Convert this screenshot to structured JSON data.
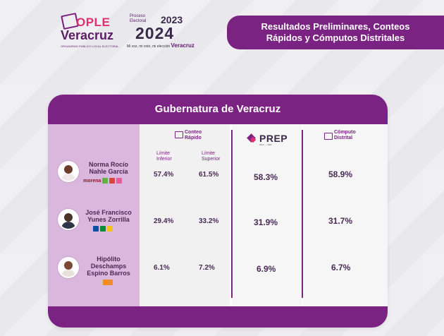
{
  "header": {
    "ople": {
      "word": "OPLE",
      "name": "Veracruz",
      "sub": "ORGANISMO PÚBLICO LOCAL ELECTORAL"
    },
    "proceso": {
      "line1": "Proceso",
      "line2": "Electoral",
      "year_from": "2023",
      "year_to": "2024",
      "tagline": "Mi voz, mi voto, mi elección",
      "tagline_place": "Veracruz"
    },
    "banner": {
      "line1": "Resultados Preliminares, Conteos",
      "line2": "Rápidos y Cómputos Distritales"
    }
  },
  "card": {
    "title": "Gubernatura de Veracruz",
    "columns": {
      "conteo": {
        "line1": "Conteo",
        "line2": "Rápido"
      },
      "prep": {
        "word": "PREP",
        "sub": "2024 — VER"
      },
      "computo": {
        "line1": "Cómputo",
        "line2": "Distrital"
      }
    },
    "limits": {
      "lower": [
        "Límite",
        "Inferior"
      ],
      "upper": [
        "Límite",
        "Superior"
      ]
    },
    "candidates": [
      {
        "name": [
          "Norma Rocío",
          "Nahle García"
        ],
        "party": "morena",
        "lower": "57.4%",
        "upper": "61.5%",
        "prep": "58.3%",
        "computo": "58.9%"
      },
      {
        "name": [
          "José Francisco",
          "Yunes Zorrilla"
        ],
        "party": "",
        "lower": "29.4%",
        "upper": "33.2%",
        "prep": "31.9%",
        "computo": "31.7%"
      },
      {
        "name": [
          "Hipólito",
          "Deschamps",
          "Espino Barros"
        ],
        "party": "",
        "lower": "6.1%",
        "upper": "7.2%",
        "prep": "6.9%",
        "computo": "6.7%"
      }
    ]
  },
  "colors": {
    "purple": "#7b2382",
    "pink": "#e0306f",
    "lilac": "#dab7dd"
  }
}
